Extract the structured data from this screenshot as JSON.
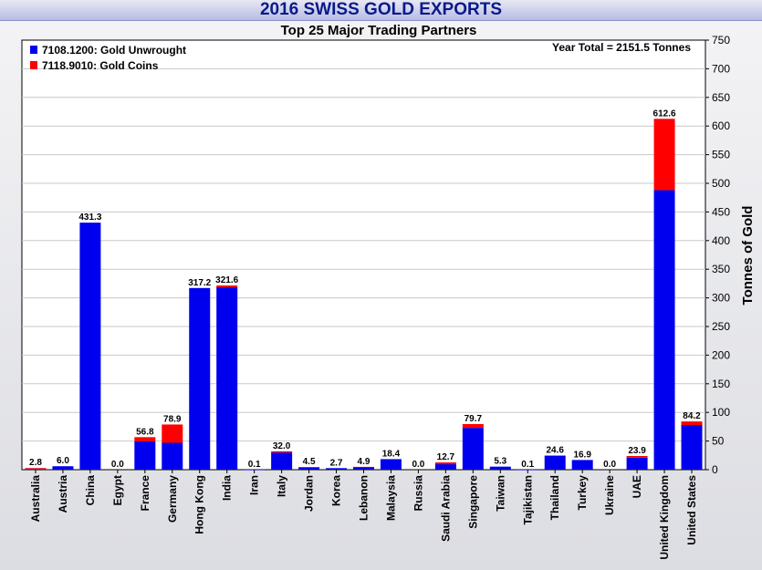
{
  "chart_data": {
    "type": "bar",
    "stacked": true,
    "title": "2016 SWISS GOLD EXPORTS",
    "subtitle": "Top 25 Major Trading Partners",
    "annotation": "Year Total = 2151.5 Tonnes",
    "ylabel": "Tonnes of Gold",
    "ylim": [
      0,
      750
    ],
    "yticks": [
      0,
      50,
      100,
      150,
      200,
      250,
      300,
      350,
      400,
      450,
      500,
      550,
      600,
      650,
      700,
      750
    ],
    "y_axis_side": "right",
    "legend_position": "top-left",
    "grid": true,
    "categories": [
      "Australia",
      "Austria",
      "China",
      "Egypt",
      "France",
      "Germany",
      "Hong Kong",
      "India",
      "Iran",
      "Italy",
      "Jordan",
      "Korea",
      "Lebanon",
      "Malaysia",
      "Russia",
      "Saudi Arabia",
      "Singapore",
      "Taiwan",
      "Tajikistan",
      "Thailand",
      "Turkey",
      "Ukraine",
      "UAE",
      "United Kingdom",
      "United States"
    ],
    "totals": [
      "2.8",
      "6.0",
      "431.3",
      "0.0",
      "56.8",
      "78.9",
      "317.2",
      "321.6",
      "0.1",
      "32.0",
      "4.5",
      "2.7",
      "4.9",
      "18.4",
      "0.0",
      "12.7",
      "79.7",
      "5.3",
      "0.1",
      "24.6",
      "16.9",
      "0.0",
      "23.9",
      "612.6",
      "84.2"
    ],
    "series": [
      {
        "name": "7108.1200: Gold Unwrought",
        "color": "#0000ee",
        "values": [
          1.0,
          6.0,
          431.3,
          0.0,
          49.5,
          47.0,
          317.2,
          318.6,
          0.1,
          30.0,
          4.0,
          2.7,
          4.0,
          18.4,
          0.0,
          9.5,
          73.0,
          5.3,
          0.1,
          24.6,
          16.9,
          0.0,
          21.0,
          488.0,
          78.0
        ]
      },
      {
        "name": "7118.9010: Gold Coins",
        "color": "#ff0000",
        "values": [
          1.8,
          0.0,
          0.0,
          0.0,
          7.3,
          31.9,
          0.0,
          3.0,
          0.0,
          2.0,
          0.5,
          0.0,
          0.9,
          0.0,
          0.0,
          3.2,
          6.7,
          0.0,
          0.0,
          0.0,
          0.0,
          0.0,
          2.9,
          124.6,
          6.2
        ]
      }
    ]
  }
}
